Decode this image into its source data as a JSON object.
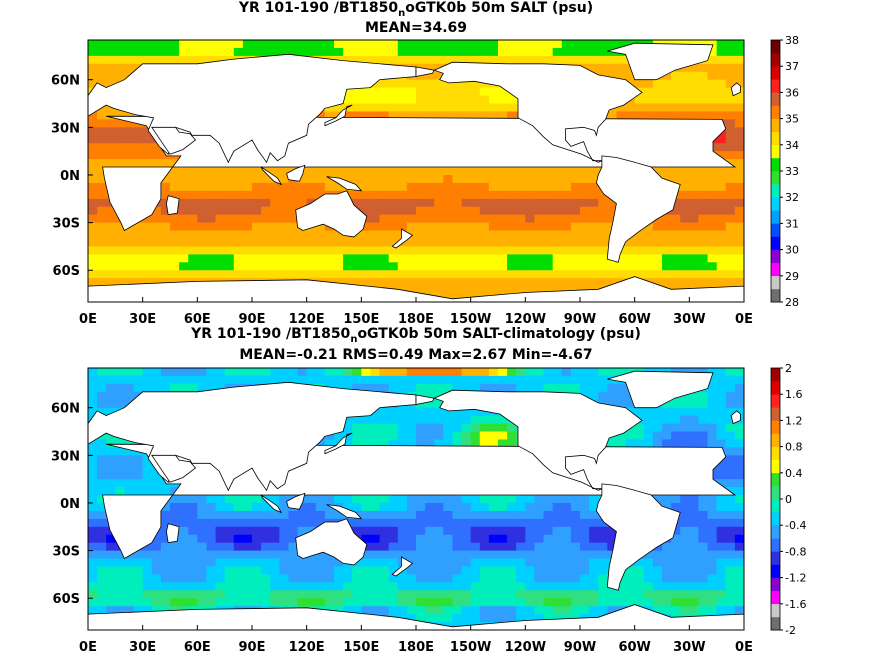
{
  "chart_data": [
    {
      "type": "heatmap",
      "title_parts": [
        "YR 101-190 /BT1850",
        "n",
        "oGTK0b 50m SALT (psu)"
      ],
      "subtitle": "MEAN=34.69",
      "x_ticks": [
        "0E",
        "30E",
        "60E",
        "90E",
        "120E",
        "150E",
        "180E",
        "150W",
        "120W",
        "90W",
        "60W",
        "30W",
        "0E"
      ],
      "y_ticks": [
        "60N",
        "30N",
        "0N",
        "30S",
        "60S"
      ],
      "y_tick_values": [
        60,
        30,
        0,
        -30,
        -60
      ],
      "lat_range": [
        -80,
        85
      ],
      "lon_range": [
        0,
        360
      ],
      "colorbar": {
        "ticks": [
          "38",
          "37",
          "36",
          "35",
          "34",
          "33",
          "32",
          "31",
          "30",
          "29",
          "28"
        ],
        "range": [
          28,
          38
        ],
        "colors": [
          "#6e6e6e",
          "#c8c8c8",
          "#ff00ff",
          "#8a00d4",
          "#0000ff",
          "#0050ff",
          "#00a0ff",
          "#00d0ff",
          "#00eebb",
          "#30e030",
          "#00dd00",
          "#ffff00",
          "#ffdd00",
          "#ffb000",
          "#ff8000",
          "#d06030",
          "#ff2020",
          "#dd0000",
          "#a00000",
          "#700000"
        ]
      }
    },
    {
      "type": "heatmap",
      "title_parts": [
        "YR 101-190 /BT1850",
        "n",
        "oGTK0b 50m SALT-climatology (psu)"
      ],
      "subtitle": "MEAN=-0.21   RMS=0.49   Max=2.67   Min=-4.67",
      "x_ticks": [
        "0E",
        "30E",
        "60E",
        "90E",
        "120E",
        "150E",
        "180E",
        "150W",
        "120W",
        "90W",
        "60W",
        "30W",
        "0E"
      ],
      "y_ticks": [
        "60N",
        "30N",
        "0N",
        "30S",
        "60S"
      ],
      "y_tick_values": [
        60,
        30,
        0,
        -30,
        -60
      ],
      "lat_range": [
        -80,
        85
      ],
      "lon_range": [
        0,
        360
      ],
      "colorbar": {
        "ticks": [
          "2",
          "1.6",
          "1.2",
          "0.8",
          "0.4",
          "0",
          "-0.4",
          "-0.8",
          "-1.2",
          "-1.6",
          "-2"
        ],
        "range": [
          -2,
          2
        ],
        "colors": [
          "#6e6e6e",
          "#c8c8c8",
          "#ff00ff",
          "#8a00d4",
          "#0000ff",
          "#3030e0",
          "#3070ff",
          "#30a0ff",
          "#00d0ff",
          "#00eebb",
          "#30e080",
          "#30e030",
          "#ffff00",
          "#ffdd00",
          "#ffb000",
          "#ff8000",
          "#d06030",
          "#ff2020",
          "#dd0000",
          "#a00000"
        ]
      }
    }
  ]
}
